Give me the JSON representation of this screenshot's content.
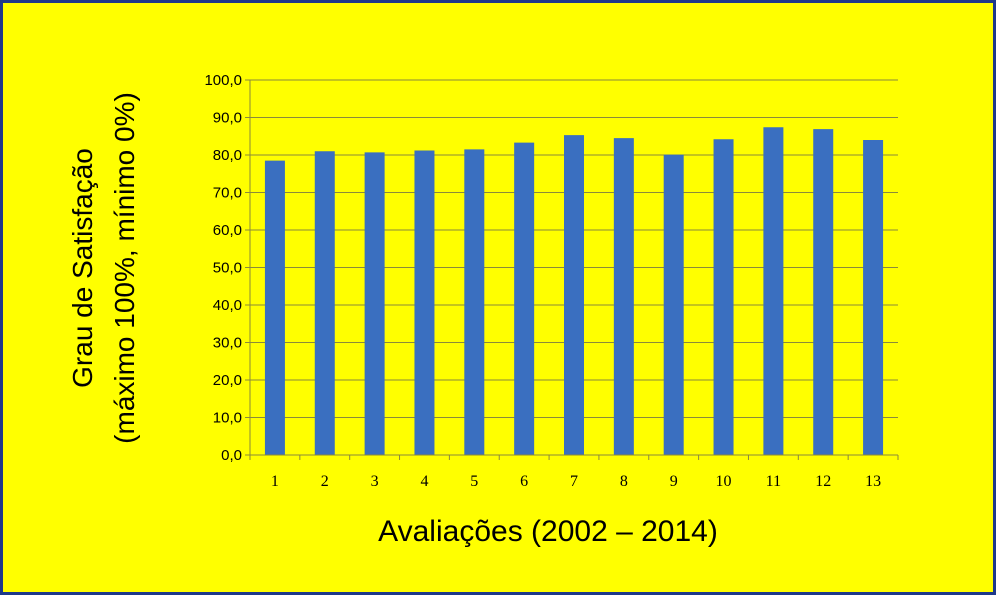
{
  "colors": {
    "background": "#ffff00",
    "border": "#1f3a8a",
    "bar": "#3a6fc0",
    "grid": "#8a8a3a"
  },
  "chart_data": {
    "type": "bar",
    "categories": [
      "1",
      "2",
      "3",
      "4",
      "5",
      "6",
      "7",
      "8",
      "9",
      "10",
      "11",
      "12",
      "13"
    ],
    "values": [
      78.5,
      81.0,
      80.7,
      81.2,
      81.5,
      83.3,
      85.3,
      84.5,
      80.1,
      84.2,
      87.4,
      86.9,
      84.0
    ],
    "ylim": [
      0,
      100
    ],
    "yticks": [
      "0,0",
      "10,0",
      "20,0",
      "30,0",
      "40,0",
      "50,0",
      "60,0",
      "70,0",
      "80,0",
      "90,0",
      "100,0"
    ],
    "ylabel_line1": "Grau de Satisfação",
    "ylabel_line2": "(máximo 100%, mínimo 0%)",
    "xlabel": "Avaliações (2002 – 2014)",
    "grid": true,
    "legend": "none"
  }
}
